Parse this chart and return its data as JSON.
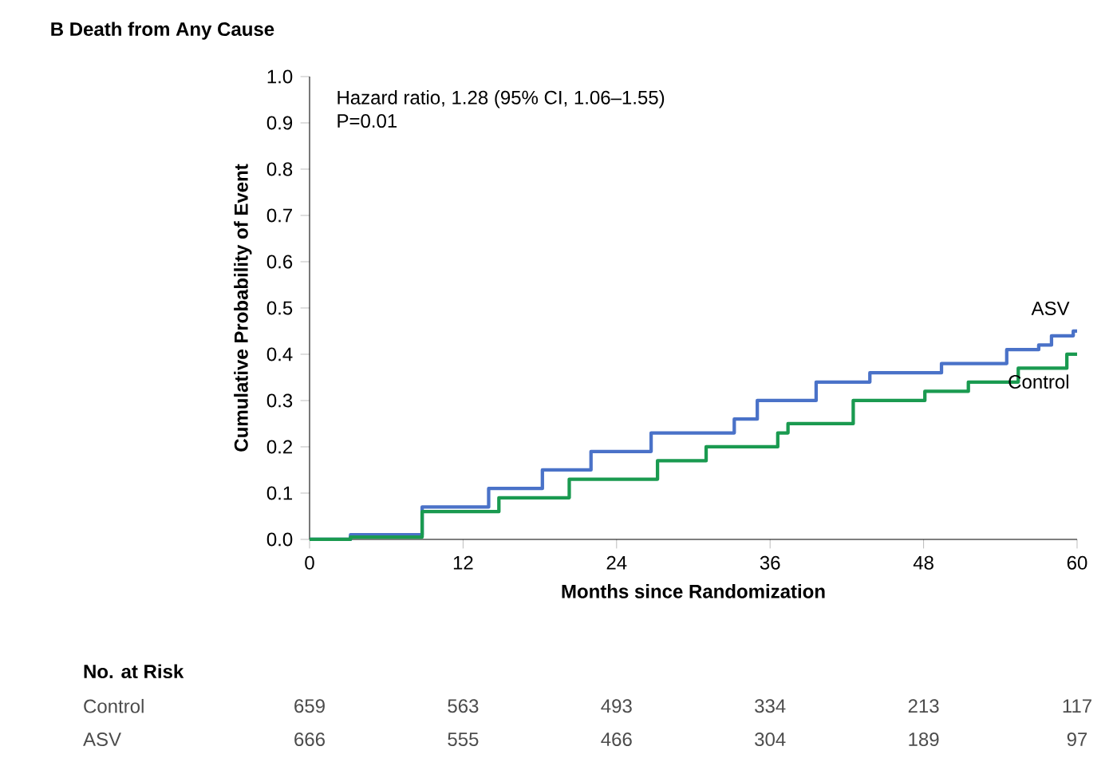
{
  "chart_data": {
    "type": "step",
    "title": "B  Death from Any Cause",
    "xlabel": "Months since Randomization",
    "ylabel": "Cumulative Probability of Event",
    "xlim": [
      0,
      60
    ],
    "xticks": [
      0,
      12,
      24,
      36,
      48,
      60
    ],
    "ylim": [
      0,
      1
    ],
    "yticks": [
      {
        "value": 0,
        "label": "0.0"
      },
      {
        "value": 0.1,
        "label": "0.1"
      },
      {
        "value": 0.2,
        "label": "0.2"
      },
      {
        "value": 0.3,
        "label": "0.3"
      },
      {
        "value": 0.4,
        "label": "0.4"
      },
      {
        "value": 0.5,
        "label": "0.5"
      },
      {
        "value": 0.6,
        "label": "0.6"
      },
      {
        "value": 0.7,
        "label": "0.7"
      },
      {
        "value": 0.8,
        "label": "0.8"
      },
      {
        "value": 0.9,
        "label": "0.9"
      },
      {
        "value": 1,
        "label": "1.0"
      }
    ],
    "grid": false,
    "legend": false,
    "series": [
      {
        "name": "ASV",
        "color": "#4a72c8",
        "x": [
          0,
          3.2,
          8.8,
          14,
          18.2,
          22,
          26.7,
          33.2,
          35,
          39.6,
          43.8,
          49.4,
          54.5,
          57,
          58,
          59.7,
          60
        ],
        "values": [
          0,
          0.01,
          0.07,
          0.11,
          0.15,
          0.19,
          0.23,
          0.26,
          0.3,
          0.34,
          0.36,
          0.38,
          0.41,
          0.42,
          0.44,
          0.45,
          0.45
        ]
      },
      {
        "name": "Control",
        "color": "#1a9a50",
        "x": [
          0,
          3.2,
          8.8,
          14.8,
          20.3,
          27.2,
          31,
          36.6,
          37.4,
          42.5,
          48.1,
          51.5,
          55.4,
          59.2,
          60
        ],
        "values": [
          0,
          0.005,
          0.06,
          0.09,
          0.13,
          0.17,
          0.2,
          0.23,
          0.25,
          0.3,
          0.32,
          0.34,
          0.37,
          0.4,
          0.4
        ]
      }
    ],
    "annotations": [
      "Hazard ratio, 1.28 (95% CI, 1.06–1.55)",
      "P=0.01",
      "No. at Risk",
      "659",
      "563",
      "493",
      "334",
      "213",
      "117",
      "666",
      "555",
      "466",
      "304",
      "189",
      "97"
    ]
  }
}
